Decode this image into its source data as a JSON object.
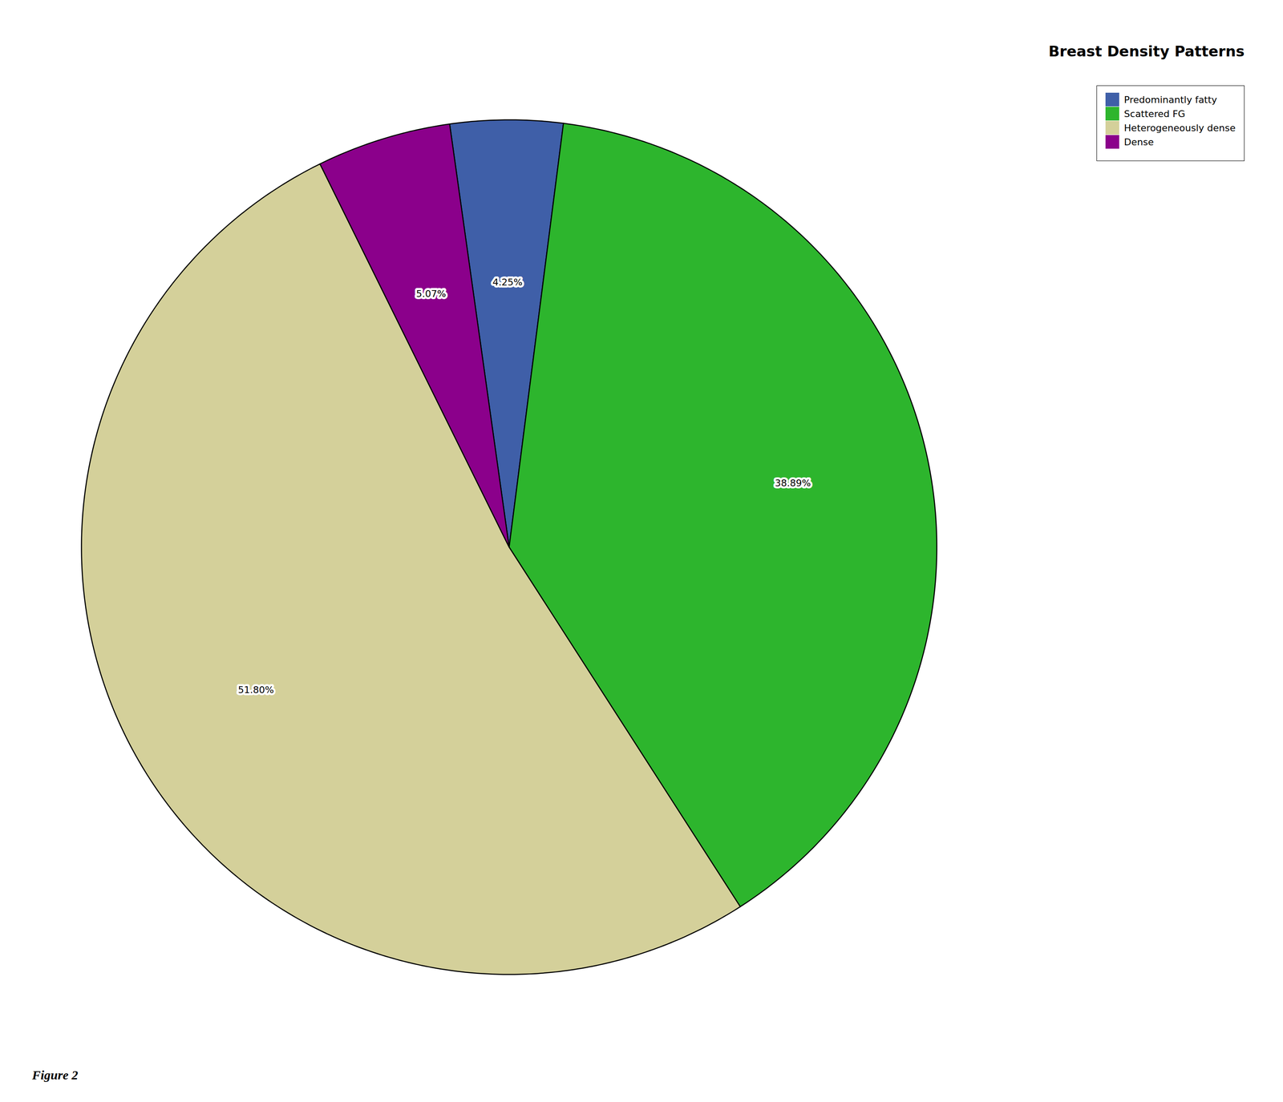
{
  "chart_data": {
    "type": "pie",
    "title": "Breast Density Patterns",
    "categories": [
      "Predominantly fatty",
      "Scattered FG",
      "Heterogeneously dense",
      "Dense"
    ],
    "values": [
      4.25,
      38.89,
      51.8,
      5.07
    ],
    "value_labels": [
      "4.25%",
      "38.89%",
      "51.80%",
      "5.07%"
    ],
    "colors": [
      "#3f5fa8",
      "#2db52d",
      "#d4d09a",
      "#8b008b"
    ],
    "data_labels": true,
    "legend": "upper right",
    "annotations": [
      "Figure 2"
    ]
  }
}
